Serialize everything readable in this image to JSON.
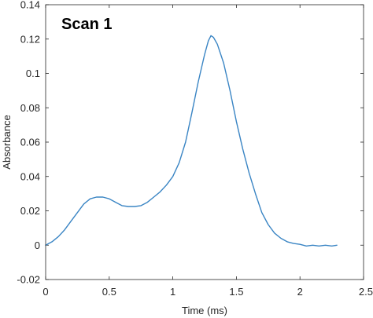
{
  "chart_data": {
    "type": "line",
    "annotation": "Scan 1",
    "xlabel": "Time (ms)",
    "ylabel": "Absorbance",
    "xlim": [
      0,
      2.5
    ],
    "ylim": [
      -0.02,
      0.14
    ],
    "x_ticks": [
      0,
      0.5,
      1,
      1.5,
      2,
      2.5
    ],
    "x_tick_labels": [
      "0",
      "0.5",
      "1",
      "1.5",
      "2",
      "2.5"
    ],
    "y_ticks": [
      -0.02,
      0,
      0.02,
      0.04,
      0.06,
      0.08,
      0.1,
      0.12,
      0.14
    ],
    "y_tick_labels": [
      "-0.02",
      "0",
      "0.02",
      "0.04",
      "0.06",
      "0.08",
      "0.1",
      "0.12",
      "0.14"
    ],
    "grid": false,
    "box": true,
    "series": [
      {
        "color": "#3a85c4",
        "x": [
          0,
          0.05,
          0.1,
          0.15,
          0.2,
          0.25,
          0.3,
          0.35,
          0.4,
          0.45,
          0.5,
          0.55,
          0.6,
          0.65,
          0.7,
          0.75,
          0.8,
          0.85,
          0.9,
          0.95,
          1.0,
          1.05,
          1.1,
          1.15,
          1.2,
          1.25,
          1.28,
          1.3,
          1.32,
          1.35,
          1.4,
          1.45,
          1.5,
          1.55,
          1.6,
          1.65,
          1.7,
          1.75,
          1.8,
          1.85,
          1.9,
          1.95,
          2.0,
          2.05,
          2.1,
          2.15,
          2.2,
          2.25,
          2.29
        ],
        "y": [
          0.0,
          0.002,
          0.005,
          0.009,
          0.014,
          0.019,
          0.024,
          0.027,
          0.028,
          0.028,
          0.027,
          0.025,
          0.023,
          0.0225,
          0.0225,
          0.023,
          0.025,
          0.028,
          0.031,
          0.035,
          0.04,
          0.048,
          0.06,
          0.077,
          0.095,
          0.111,
          0.119,
          0.122,
          0.121,
          0.117,
          0.106,
          0.09,
          0.072,
          0.056,
          0.042,
          0.03,
          0.019,
          0.012,
          0.007,
          0.004,
          0.002,
          0.001,
          0.0005,
          -0.0005,
          0.0,
          -0.0005,
          0.0,
          -0.0005,
          0.0
        ]
      }
    ]
  }
}
